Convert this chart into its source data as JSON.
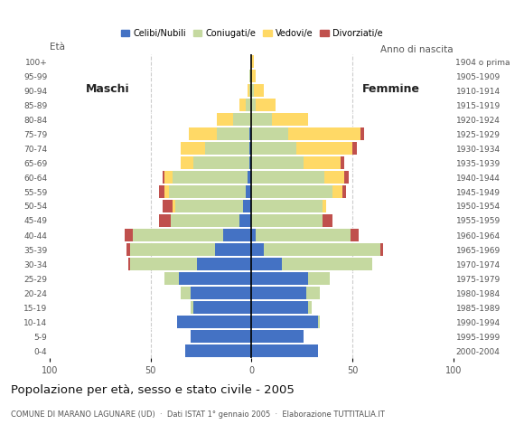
{
  "age_groups": [
    "0-4",
    "5-9",
    "10-14",
    "15-19",
    "20-24",
    "25-29",
    "30-34",
    "35-39",
    "40-44",
    "45-49",
    "50-54",
    "55-59",
    "60-64",
    "65-69",
    "70-74",
    "75-79",
    "80-84",
    "85-89",
    "90-94",
    "95-99",
    "100+"
  ],
  "birth_years": [
    "2000-2004",
    "1995-1999",
    "1990-1994",
    "1985-1989",
    "1980-1984",
    "1975-1979",
    "1970-1974",
    "1965-1969",
    "1960-1964",
    "1955-1959",
    "1950-1954",
    "1945-1949",
    "1940-1944",
    "1935-1939",
    "1930-1934",
    "1925-1929",
    "1920-1924",
    "1915-1919",
    "1910-1914",
    "1905-1909",
    "1904 o prima"
  ],
  "males": {
    "celibe": [
      33,
      30,
      37,
      29,
      30,
      36,
      27,
      18,
      14,
      6,
      4,
      3,
      2,
      1,
      1,
      1,
      0,
      0,
      0,
      0,
      0
    ],
    "coniugato": [
      0,
      0,
      0,
      1,
      5,
      7,
      33,
      42,
      45,
      34,
      34,
      38,
      37,
      28,
      22,
      16,
      9,
      3,
      1,
      1,
      0
    ],
    "vedovo": [
      0,
      0,
      0,
      0,
      0,
      0,
      0,
      0,
      0,
      0,
      1,
      2,
      4,
      6,
      12,
      14,
      8,
      3,
      1,
      0,
      0
    ],
    "divorziato": [
      0,
      0,
      0,
      0,
      0,
      0,
      1,
      2,
      4,
      6,
      5,
      3,
      1,
      0,
      0,
      0,
      0,
      0,
      0,
      0,
      0
    ]
  },
  "females": {
    "nubile": [
      33,
      26,
      33,
      28,
      27,
      28,
      15,
      6,
      2,
      0,
      0,
      0,
      0,
      0,
      0,
      0,
      0,
      0,
      0,
      0,
      0
    ],
    "coniugata": [
      0,
      0,
      1,
      2,
      7,
      11,
      45,
      58,
      47,
      35,
      35,
      40,
      36,
      26,
      22,
      18,
      10,
      2,
      1,
      0,
      0
    ],
    "vedova": [
      0,
      0,
      0,
      0,
      0,
      0,
      0,
      0,
      0,
      0,
      2,
      5,
      10,
      18,
      28,
      36,
      18,
      10,
      5,
      2,
      1
    ],
    "divorziata": [
      0,
      0,
      0,
      0,
      0,
      0,
      0,
      1,
      4,
      5,
      0,
      2,
      2,
      2,
      2,
      2,
      0,
      0,
      0,
      0,
      0
    ]
  },
  "colors": {
    "celibe": "#4472c4",
    "coniugato": "#c5d9a0",
    "vedovo": "#ffd966",
    "divorziato": "#c0504d"
  },
  "legend_labels": [
    "Celibi/Nubili",
    "Coniugati/e",
    "Vedovi/e",
    "Divorziati/e"
  ],
  "title": "Popolazione per età, sesso e stato civile - 2005",
  "subtitle": "COMUNE DI MARANO LAGUNARE (UD)  ·  Dati ISTAT 1° gennaio 2005  ·  Elaborazione TUTTITALIA.IT",
  "x_label_males": "Maschi",
  "x_label_females": "Femmine",
  "eta_label": "Età",
  "anno_label": "Anno di nascita",
  "xlim": 100,
  "background_color": "#ffffff",
  "grid_color": "#cccccc",
  "tick_color": "#555555"
}
